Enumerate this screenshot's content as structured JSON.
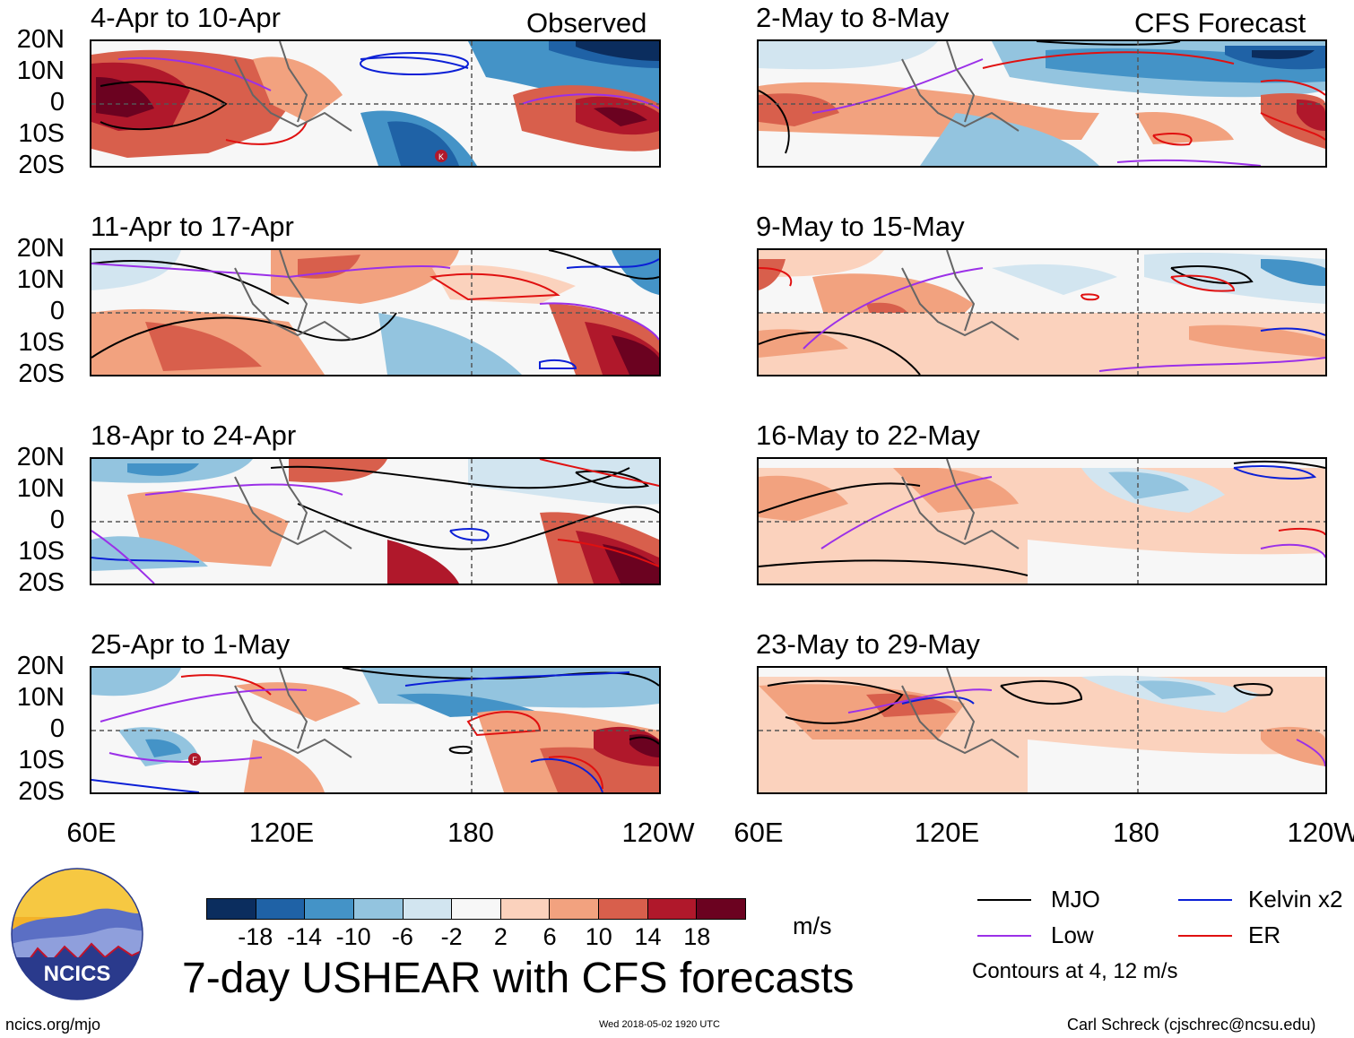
{
  "header": {
    "observed_label": "Observed",
    "forecast_label": "CFS Forecast"
  },
  "panels_left": [
    {
      "title": "4-Apr to 10-Apr"
    },
    {
      "title": "11-Apr to 17-Apr"
    },
    {
      "title": "18-Apr to 24-Apr"
    },
    {
      "title": "25-Apr to 1-May"
    }
  ],
  "panels_right": [
    {
      "title": "2-May to 8-May"
    },
    {
      "title": "9-May to 15-May"
    },
    {
      "title": "16-May to 22-May"
    },
    {
      "title": "23-May to 29-May"
    }
  ],
  "lat_labels": [
    "20N",
    "10N",
    "0",
    "10S",
    "20S"
  ],
  "lon_labels": [
    "60E",
    "120E",
    "180",
    "120W"
  ],
  "storm_markers": [
    {
      "letter": "K",
      "panel": "4-Apr to 10-Apr"
    },
    {
      "letter": "F",
      "panel": "25-Apr to 1-May"
    }
  ],
  "colorbar": {
    "ticks": [
      "-18",
      "-14",
      "-10",
      "-6",
      "-2",
      "2",
      "6",
      "10",
      "14",
      "18"
    ],
    "colors": [
      "#0b2d5e",
      "#1f62a6",
      "#4493c7",
      "#93c4df",
      "#d2e5f0",
      "#f7f7f7",
      "#fbd2bd",
      "#f2a27f",
      "#d85f4c",
      "#b0182b",
      "#6b0220"
    ],
    "units": "m/s"
  },
  "title": "7-day USHEAR with CFS forecasts",
  "legend": {
    "items": [
      {
        "label": "MJO",
        "color": "#000000"
      },
      {
        "label": "Kelvin x2",
        "color": "#0b1fd6"
      },
      {
        "label": "Low",
        "color": "#9b30e8"
      },
      {
        "label": "ER",
        "color": "#e01010"
      }
    ],
    "contours_note": "Contours at 4, 12 m/s"
  },
  "logo": {
    "text": "NCICS"
  },
  "footer": {
    "url": "ncics.org/mjo",
    "timestamp": "Wed 2018-05-02 1920 UTC",
    "credit": "Carl Schreck (cjschrec@ncsu.edu)"
  }
}
